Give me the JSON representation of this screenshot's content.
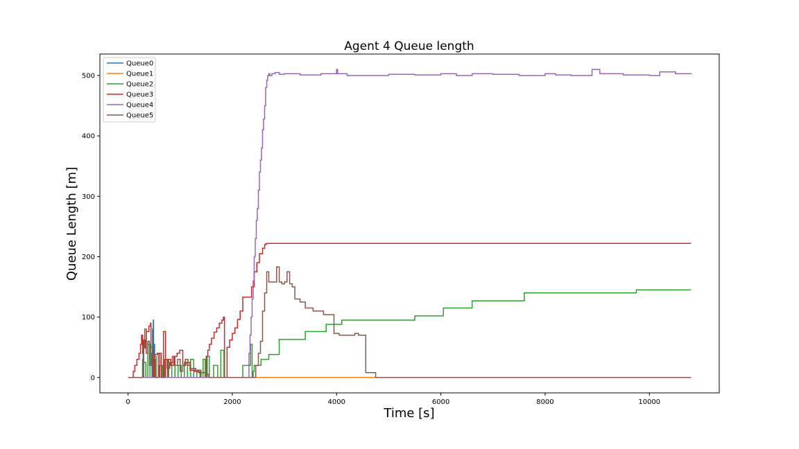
{
  "chart_data": {
    "type": "line",
    "title": "Agent 4 Queue length",
    "xlabel": "Time [s]",
    "ylabel": "Queue Length [m]",
    "xlim": [
      -540,
      11340
    ],
    "ylim": [
      -25.5,
      535.5
    ],
    "xticks": [
      0,
      2000,
      4000,
      6000,
      8000,
      10000
    ],
    "yticks": [
      0,
      100,
      200,
      300,
      400,
      500
    ],
    "grid": false,
    "legend_position": "upper-left",
    "series": [
      {
        "name": "Queue0",
        "color": "#1f77b4",
        "step": true,
        "x": [
          0,
          270,
          280,
          290,
          300,
          450,
          460,
          470,
          480,
          485,
          490,
          500,
          510,
          520,
          600,
          10800
        ],
        "y": [
          0,
          0,
          30,
          60,
          0,
          0,
          40,
          80,
          40,
          95,
          0,
          55,
          0,
          0,
          0,
          0
        ]
      },
      {
        "name": "Queue1",
        "color": "#ff7f0e",
        "step": true,
        "x": [
          0,
          4750,
          10800
        ],
        "y": [
          0,
          0,
          0
        ]
      },
      {
        "name": "Queue2",
        "color": "#2ca02c",
        "step": true,
        "x": [
          0,
          250,
          300,
          340,
          380,
          420,
          470,
          540,
          600,
          660,
          720,
          780,
          840,
          900,
          960,
          1020,
          1080,
          1140,
          1200,
          1260,
          1320,
          1380,
          1440,
          1480,
          1520,
          1560,
          1640,
          1720,
          1780,
          1840,
          1870,
          1900,
          2200,
          2350,
          2380,
          2400,
          2420,
          2550,
          2700,
          2900,
          3100,
          3400,
          3800,
          4100,
          4500,
          5000,
          5500,
          6050,
          6600,
          7600,
          8600,
          9750,
          10800
        ],
        "y": [
          0,
          0,
          25,
          0,
          55,
          0,
          35,
          0,
          20,
          0,
          30,
          0,
          25,
          0,
          20,
          0,
          25,
          0,
          30,
          0,
          10,
          0,
          30,
          0,
          35,
          0,
          20,
          0,
          45,
          0,
          0,
          0,
          20,
          55,
          0,
          10,
          20,
          30,
          38,
          63,
          63,
          76,
          88,
          95,
          95,
          95,
          102,
          115,
          127,
          140,
          140,
          145,
          145
        ]
      },
      {
        "name": "Queue3",
        "color": "#d62728",
        "step": true,
        "x": [
          0,
          100,
          130,
          170,
          210,
          240,
          260,
          280,
          300,
          330,
          350,
          370,
          400,
          430,
          440,
          470,
          500,
          560,
          610,
          680,
          720,
          760,
          820,
          880,
          940,
          990,
          1050,
          1110,
          1190,
          1280,
          1350,
          1400,
          1500,
          1530,
          1560,
          1600,
          1650,
          1700,
          1750,
          1800,
          1830,
          1850,
          1900,
          1950,
          2000,
          2050,
          2100,
          2150,
          2200,
          2250,
          2280,
          2320,
          2370,
          2420,
          2470,
          2520,
          2580,
          2620,
          2640,
          2660,
          2700,
          10800
        ],
        "y": [
          0,
          10,
          20,
          30,
          40,
          55,
          70,
          40,
          62,
          48,
          76,
          76,
          85,
          90,
          50,
          0,
          38,
          40,
          0,
          76,
          0,
          30,
          20,
          35,
          40,
          45,
          20,
          25,
          12,
          10,
          8,
          0,
          35,
          45,
          55,
          65,
          75,
          82,
          90,
          95,
          100,
          0,
          50,
          62,
          73,
          82,
          96,
          110,
          133,
          133,
          133,
          133,
          150,
          175,
          190,
          205,
          214,
          220,
          221,
          222,
          222,
          222
        ]
      },
      {
        "name": "Queue4",
        "color": "#9467bd",
        "step": true,
        "x": [
          0,
          2280,
          2320,
          2340,
          2360,
          2380,
          2400,
          2420,
          2440,
          2460,
          2480,
          2500,
          2520,
          2540,
          2560,
          2580,
          2600,
          2620,
          2640,
          2660,
          2680,
          2700,
          2720,
          2760,
          2820,
          2900,
          3000,
          3300,
          3700,
          4000,
          4020,
          4200,
          4400,
          5000,
          5500,
          6000,
          6300,
          6600,
          7000,
          7500,
          8000,
          8200,
          8500,
          8900,
          9050,
          9100,
          9500,
          10000,
          10200,
          10500,
          10800
        ],
        "y": [
          0,
          0,
          40,
          70,
          100,
          130,
          160,
          200,
          230,
          260,
          280,
          310,
          340,
          360,
          380,
          410,
          428,
          450,
          480,
          492,
          500,
          503,
          500,
          503,
          505,
          502,
          503,
          501,
          503,
          510,
          503,
          500,
          500,
          502,
          501,
          503,
          500,
          503,
          502,
          500,
          503,
          501,
          500,
          510,
          503,
          503,
          501,
          500,
          506,
          503,
          504
        ]
      },
      {
        "name": "Queue5",
        "color": "#8c564b",
        "step": true,
        "x": [
          0,
          260,
          280,
          300,
          320,
          350,
          380,
          410,
          440,
          470,
          520,
          580,
          640,
          700,
          750,
          800,
          850,
          900,
          950,
          1000,
          1050,
          1100,
          1150,
          1200,
          1300,
          1400,
          1500,
          1550,
          2400,
          2450,
          2500,
          2540,
          2580,
          2620,
          2660,
          2700,
          2740,
          2780,
          2820,
          2850,
          2900,
          2950,
          3000,
          3050,
          3100,
          3150,
          3200,
          3300,
          3400,
          3550,
          3750,
          3950,
          4050,
          4350,
          4420,
          4560,
          4750,
          10800
        ],
        "y": [
          0,
          0,
          25,
          50,
          80,
          40,
          60,
          20,
          50,
          30,
          0,
          40,
          0,
          30,
          15,
          25,
          35,
          20,
          30,
          10,
          20,
          30,
          20,
          15,
          12,
          8,
          5,
          0,
          0,
          20,
          40,
          60,
          110,
          140,
          175,
          158,
          158,
          158,
          158,
          183,
          158,
          155,
          158,
          175,
          155,
          150,
          130,
          125,
          115,
          110,
          104,
          73,
          70,
          73,
          70,
          8,
          0,
          0
        ]
      }
    ]
  }
}
